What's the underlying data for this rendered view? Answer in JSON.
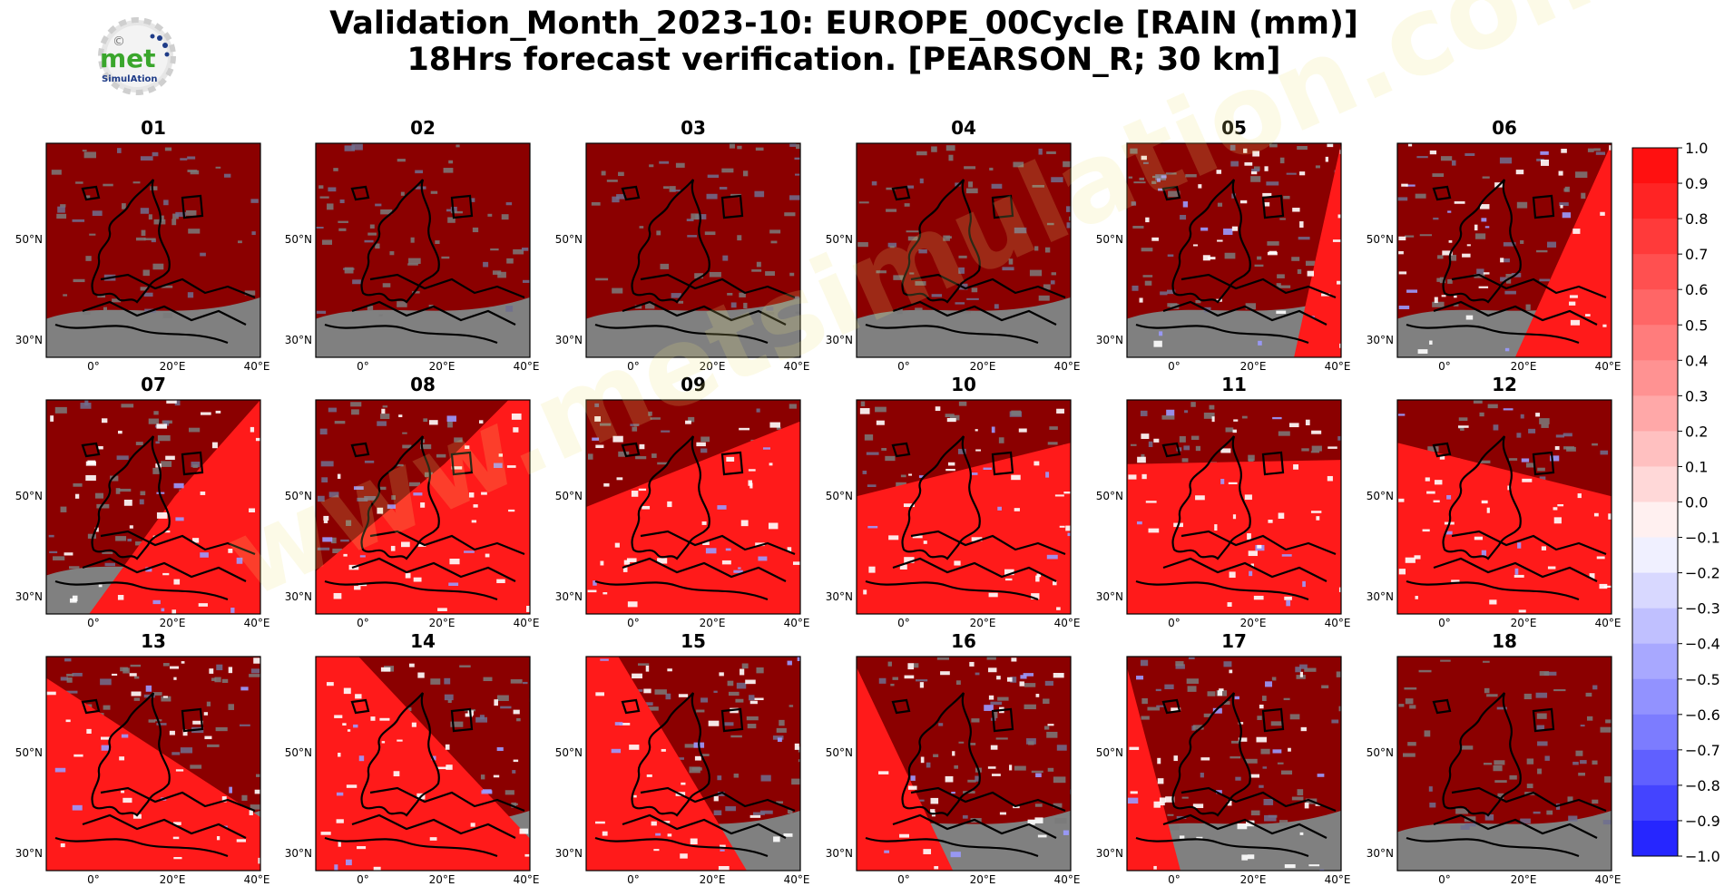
{
  "title": {
    "line1": "Validation_Month_2023-10: EUROPE_00Cycle [RAIN (mm)]",
    "line2": "18Hrs forecast verification.  [PEARSON_R; 30 km]"
  },
  "logo": {
    "text_main": "met",
    "text_sub": "SimulAtion",
    "symbol": "©"
  },
  "watermark": "www.metsimulation.com",
  "chart_data": {
    "type": "heatmap",
    "panels": [
      "01",
      "02",
      "03",
      "04",
      "05",
      "06",
      "07",
      "08",
      "09",
      "10",
      "11",
      "12",
      "13",
      "14",
      "15",
      "16",
      "17",
      "18"
    ],
    "lat_ticks": [
      "50°N",
      "30°N"
    ],
    "lon_ticks": [
      "0°",
      "20°E",
      "40°E"
    ],
    "colorbar": {
      "min": -1.0,
      "max": 1.0,
      "step": 0.1,
      "tick_labels": [
        "1.0",
        "0.9",
        "0.8",
        "0.7",
        "0.6",
        "0.5",
        "0.4",
        "0.3",
        "0.2",
        "0.1",
        "0.0",
        "−0.1",
        "−0.2",
        "−0.3",
        "−0.4",
        "−0.5",
        "−0.6",
        "−0.7",
        "−0.8",
        "−0.9",
        "−1.0"
      ],
      "colors_high_to_low": [
        "#ff1010",
        "#ff2424",
        "#ff3a3a",
        "#ff5050",
        "#ff6666",
        "#ff7c7c",
        "#ff9292",
        "#ffa8a8",
        "#ffc0c0",
        "#ffd8d8",
        "#fff0f0",
        "#f0f0ff",
        "#d8d8ff",
        "#c0c0ff",
        "#a8a8ff",
        "#9292ff",
        "#7c7cff",
        "#6060ff",
        "#4444ff",
        "#2626ff"
      ]
    },
    "colors": {
      "high_corr": "#8b0000",
      "no_data": "#808080",
      "positive": "#ff1a1a",
      "neutral": "#ffffff",
      "negative": "#1a1aff"
    }
  }
}
